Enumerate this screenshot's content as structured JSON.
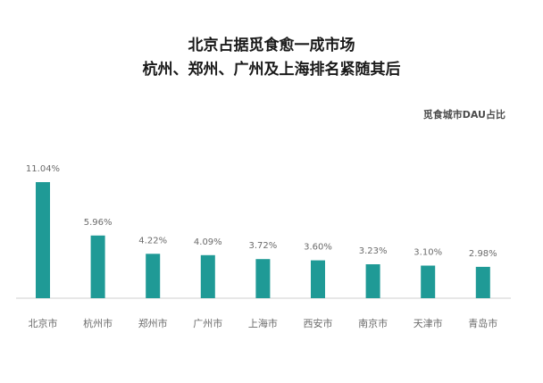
{
  "chart_data": {
    "type": "bar",
    "title": [
      "北京占据觅食愈一成市场",
      "杭州、郑州、广州及上海排名紧随其后"
    ],
    "legend": "觅食城市DAU占比",
    "legend_position": "top-right",
    "bar_color": "#1f9a96",
    "axis_color": "#cfcfcf",
    "grid": false,
    "categories": [
      "北京市",
      "杭州市",
      "郑州市",
      "广州市",
      "上海市",
      "西安市",
      "南京市",
      "天津市",
      "青岛市"
    ],
    "values": [
      11.04,
      5.96,
      4.22,
      4.09,
      3.72,
      3.6,
      3.23,
      3.1,
      2.98
    ],
    "value_labels": [
      "11.04%",
      "5.96%",
      "4.22%",
      "4.09%",
      "3.72%",
      "3.60%",
      "3.23%",
      "3.10%",
      "2.98%"
    ],
    "ylim": [
      0,
      11.04
    ]
  }
}
